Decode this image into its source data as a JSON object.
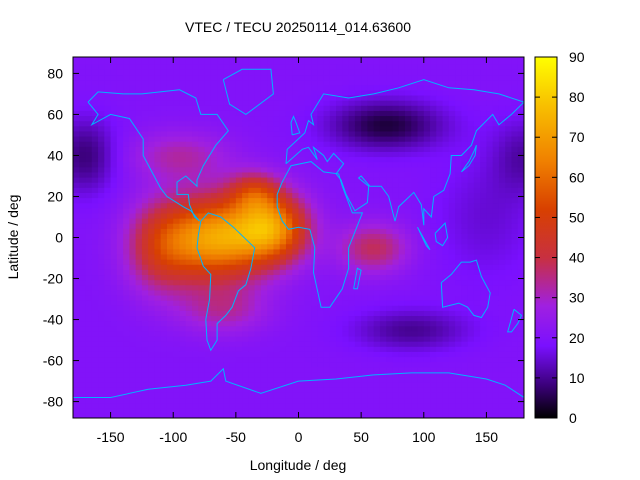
{
  "chart_data": {
    "type": "heatmap",
    "title": "VTEC / TECU 20250114_014.63600",
    "xlabel": "Longitude / deg",
    "ylabel": "Latitude / deg",
    "xlim": [
      -180,
      180
    ],
    "ylim": [
      -88,
      88
    ],
    "xticks": [
      -150,
      -100,
      -50,
      0,
      50,
      100,
      150
    ],
    "yticks": [
      -80,
      -60,
      -40,
      -20,
      0,
      20,
      40,
      60,
      80
    ],
    "colorbar": {
      "min": 0,
      "max": 90,
      "ticks": [
        0,
        10,
        20,
        30,
        40,
        50,
        60,
        70,
        80,
        90
      ],
      "colormap": [
        {
          "v": 0,
          "color": "#000000"
        },
        {
          "v": 8,
          "color": "#3a0078"
        },
        {
          "v": 18,
          "color": "#7a10ff"
        },
        {
          "v": 28,
          "color": "#a020e0"
        },
        {
          "v": 40,
          "color": "#c83040"
        },
        {
          "v": 52,
          "color": "#d84000"
        },
        {
          "v": 64,
          "color": "#f08000"
        },
        {
          "v": 78,
          "color": "#f8c000"
        },
        {
          "v": 90,
          "color": "#ffff00"
        }
      ]
    },
    "field": {
      "background_tecu": 20,
      "anomalies": [
        {
          "lon": -65,
          "lat": 0,
          "amp": 50,
          "sigma_lon": 42,
          "sigma_lat": 20
        },
        {
          "lon": -20,
          "lat": 5,
          "amp": 40,
          "sigma_lon": 28,
          "sigma_lat": 16
        },
        {
          "lon": -110,
          "lat": -5,
          "amp": 20,
          "sigma_lon": 28,
          "sigma_lat": 22
        },
        {
          "lon": -35,
          "lat": 22,
          "amp": 20,
          "sigma_lon": 20,
          "sigma_lat": 10
        },
        {
          "lon": -95,
          "lat": 40,
          "amp": 12,
          "sigma_lon": 40,
          "sigma_lat": 12
        },
        {
          "lon": 60,
          "lat": -5,
          "amp": 18,
          "sigma_lon": 28,
          "sigma_lat": 12
        },
        {
          "lon": -60,
          "lat": -35,
          "amp": 12,
          "sigma_lon": 35,
          "sigma_lat": 12
        },
        {
          "lon": 70,
          "lat": 55,
          "amp": -16,
          "sigma_lon": 45,
          "sigma_lat": 12
        },
        {
          "lon": -170,
          "lat": 40,
          "amp": -12,
          "sigma_lon": 25,
          "sigma_lat": 18
        },
        {
          "lon": 180,
          "lat": 40,
          "amp": -8,
          "sigma_lon": 25,
          "sigma_lat": 18
        },
        {
          "lon": 90,
          "lat": -45,
          "amp": -10,
          "sigma_lon": 45,
          "sigma_lat": 10
        },
        {
          "lon": 150,
          "lat": 10,
          "amp": -5,
          "sigma_lon": 40,
          "sigma_lat": 30
        }
      ]
    },
    "coastlines": [
      {
        "name": "north-america",
        "points": [
          [
            -168,
            66
          ],
          [
            -160,
            71
          ],
          [
            -140,
            70
          ],
          [
            -125,
            70
          ],
          [
            -95,
            72
          ],
          [
            -82,
            68
          ],
          [
            -78,
            60
          ],
          [
            -65,
            60
          ],
          [
            -56,
            52
          ],
          [
            -66,
            45
          ],
          [
            -70,
            41
          ],
          [
            -76,
            35
          ],
          [
            -81,
            28
          ],
          [
            -81,
            25
          ],
          [
            -90,
            30
          ],
          [
            -97,
            27
          ],
          [
            -97,
            21
          ],
          [
            -88,
            21
          ],
          [
            -87,
            16
          ],
          [
            -83,
            10
          ],
          [
            -79,
            8
          ],
          [
            -86,
            13
          ],
          [
            -92,
            15
          ],
          [
            -105,
            20
          ],
          [
            -110,
            24
          ],
          [
            -117,
            32
          ],
          [
            -124,
            40
          ],
          [
            -124,
            48
          ],
          [
            -135,
            58
          ],
          [
            -150,
            60
          ],
          [
            -165,
            55
          ],
          [
            -160,
            60
          ],
          [
            -168,
            66
          ]
        ]
      },
      {
        "name": "south-america",
        "points": [
          [
            -78,
            8
          ],
          [
            -72,
            12
          ],
          [
            -62,
            10
          ],
          [
            -52,
            5
          ],
          [
            -35,
            -5
          ],
          [
            -38,
            -15
          ],
          [
            -42,
            -23
          ],
          [
            -48,
            -26
          ],
          [
            -53,
            -34
          ],
          [
            -58,
            -38
          ],
          [
            -65,
            -42
          ],
          [
            -65,
            -50
          ],
          [
            -70,
            -55
          ],
          [
            -73,
            -50
          ],
          [
            -74,
            -40
          ],
          [
            -71,
            -30
          ],
          [
            -70,
            -18
          ],
          [
            -76,
            -14
          ],
          [
            -81,
            -5
          ],
          [
            -80,
            1
          ],
          [
            -78,
            8
          ]
        ]
      },
      {
        "name": "africa",
        "points": [
          [
            -17,
            15
          ],
          [
            -17,
            21
          ],
          [
            -13,
            27
          ],
          [
            -6,
            35
          ],
          [
            10,
            37
          ],
          [
            20,
            32
          ],
          [
            32,
            31
          ],
          [
            35,
            25
          ],
          [
            43,
            12
          ],
          [
            51,
            12
          ],
          [
            40,
            -5
          ],
          [
            40,
            -15
          ],
          [
            35,
            -25
          ],
          [
            25,
            -34
          ],
          [
            18,
            -34
          ],
          [
            12,
            -17
          ],
          [
            13,
            -5
          ],
          [
            9,
            4
          ],
          [
            0,
            5
          ],
          [
            -8,
            4
          ],
          [
            -13,
            8
          ],
          [
            -17,
            15
          ]
        ]
      },
      {
        "name": "madagascar",
        "points": [
          [
            44,
            -25
          ],
          [
            47,
            -15
          ],
          [
            50,
            -16
          ],
          [
            47,
            -25
          ],
          [
            44,
            -25
          ]
        ]
      },
      {
        "name": "eurasia",
        "points": [
          [
            -10,
            36
          ],
          [
            -9,
            43
          ],
          [
            -2,
            47
          ],
          [
            5,
            51
          ],
          [
            8,
            57
          ],
          [
            12,
            55
          ],
          [
            10,
            60
          ],
          [
            20,
            70
          ],
          [
            40,
            68
          ],
          [
            60,
            70
          ],
          [
            80,
            73
          ],
          [
            100,
            77
          ],
          [
            120,
            73
          ],
          [
            140,
            72
          ],
          [
            160,
            70
          ],
          [
            180,
            66
          ],
          [
            170,
            60
          ],
          [
            160,
            55
          ],
          [
            155,
            60
          ],
          [
            142,
            52
          ],
          [
            138,
            45
          ],
          [
            130,
            40
          ],
          [
            122,
            40
          ],
          [
            121,
            31
          ],
          [
            116,
            23
          ],
          [
            108,
            20
          ],
          [
            106,
            10
          ],
          [
            100,
            14
          ],
          [
            100,
            6
          ],
          [
            98,
            16
          ],
          [
            92,
            22
          ],
          [
            80,
            15
          ],
          [
            77,
            8
          ],
          [
            72,
            20
          ],
          [
            66,
            25
          ],
          [
            57,
            25
          ],
          [
            50,
            30
          ],
          [
            48,
            29
          ],
          [
            56,
            25
          ],
          [
            55,
            17
          ],
          [
            45,
            13
          ],
          [
            38,
            21
          ],
          [
            34,
            28
          ],
          [
            30,
            31
          ],
          [
            36,
            36
          ],
          [
            28,
            41
          ],
          [
            23,
            37
          ],
          [
            20,
            40
          ],
          [
            12,
            44
          ],
          [
            15,
            38
          ],
          [
            8,
            44
          ],
          [
            3,
            43
          ],
          [
            -10,
            36
          ]
        ]
      },
      {
        "name": "great-britain",
        "points": [
          [
            -5,
            50
          ],
          [
            1,
            51
          ],
          [
            -2,
            56
          ],
          [
            -4,
            59
          ],
          [
            -6,
            56
          ],
          [
            -5,
            50
          ]
        ]
      },
      {
        "name": "greenland",
        "points": [
          [
            -60,
            77
          ],
          [
            -45,
            82
          ],
          [
            -22,
            82
          ],
          [
            -20,
            70
          ],
          [
            -42,
            60
          ],
          [
            -55,
            65
          ],
          [
            -60,
            77
          ]
        ]
      },
      {
        "name": "japan",
        "points": [
          [
            130,
            32
          ],
          [
            136,
            35
          ],
          [
            141,
            40
          ],
          [
            142,
            45
          ],
          [
            140,
            42
          ],
          [
            136,
            37
          ],
          [
            130,
            32
          ]
        ]
      },
      {
        "name": "sumatra-borneo",
        "points": [
          [
            95,
            5
          ],
          [
            105,
            -6
          ],
          [
            102,
            -4
          ],
          [
            95,
            5
          ]
        ]
      },
      {
        "name": "borneo",
        "points": [
          [
            109,
            2
          ],
          [
            117,
            7
          ],
          [
            119,
            0
          ],
          [
            115,
            -4
          ],
          [
            110,
            -2
          ],
          [
            109,
            2
          ]
        ]
      },
      {
        "name": "australia",
        "points": [
          [
            114,
            -22
          ],
          [
            122,
            -18
          ],
          [
            130,
            -12
          ],
          [
            137,
            -12
          ],
          [
            142,
            -11
          ],
          [
            146,
            -19
          ],
          [
            153,
            -27
          ],
          [
            151,
            -34
          ],
          [
            146,
            -39
          ],
          [
            140,
            -38
          ],
          [
            135,
            -34
          ],
          [
            128,
            -32
          ],
          [
            115,
            -34
          ],
          [
            114,
            -22
          ]
        ]
      },
      {
        "name": "new-zealand",
        "points": [
          [
            172,
            -35
          ],
          [
            178,
            -38
          ],
          [
            175,
            -42
          ],
          [
            170,
            -46
          ],
          [
            167,
            -46
          ],
          [
            172,
            -35
          ]
        ]
      },
      {
        "name": "antarctica",
        "points": [
          [
            -180,
            -78
          ],
          [
            -150,
            -78
          ],
          [
            -120,
            -74
          ],
          [
            -90,
            -72
          ],
          [
            -70,
            -70
          ],
          [
            -60,
            -64
          ],
          [
            -58,
            -70
          ],
          [
            -30,
            -76
          ],
          [
            0,
            -70
          ],
          [
            30,
            -69
          ],
          [
            60,
            -67
          ],
          [
            90,
            -66
          ],
          [
            120,
            -66
          ],
          [
            150,
            -69
          ],
          [
            165,
            -72
          ],
          [
            180,
            -78
          ]
        ]
      }
    ]
  }
}
